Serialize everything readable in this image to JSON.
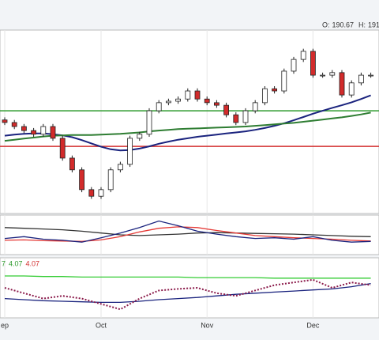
{
  "chart_data": {
    "type": "candlestick",
    "header_text": [
      "O:",
      "190.67",
      "H:",
      "191"
    ],
    "categories": [
      "ep",
      null,
      null,
      null,
      null,
      null,
      null,
      null,
      null,
      null,
      "Oct",
      null,
      null,
      null,
      null,
      null,
      null,
      null,
      null,
      null,
      null,
      "Nov",
      null,
      null,
      null,
      null,
      null,
      null,
      null,
      null,
      null,
      null,
      "Dec",
      null,
      null,
      null,
      null,
      null,
      null
    ],
    "open": [
      175.5,
      174.8,
      173.7,
      172.6,
      171.6,
      173.7,
      170.5,
      165.1,
      161.9,
      156.5,
      154.7,
      156.5,
      161.9,
      163.4,
      170.5,
      171.6,
      178.0,
      180.2,
      180.6,
      181.2,
      183.4,
      181.2,
      180.2,
      179.5,
      176.9,
      174.8,
      178.0,
      180.2,
      184.0,
      183.4,
      188.8,
      192.0,
      194.2,
      187.7,
      187.7,
      188.4,
      182.3,
      185.6,
      187.7
    ],
    "high": [
      176.2,
      175.5,
      174.4,
      173.3,
      174.4,
      174.4,
      171.2,
      165.8,
      162.6,
      157.2,
      157.2,
      162.6,
      164.1,
      171.2,
      172.3,
      178.7,
      180.9,
      181.3,
      181.9,
      184.1,
      184.1,
      181.9,
      180.9,
      180.2,
      177.6,
      178.7,
      180.9,
      184.7,
      184.7,
      189.5,
      192.7,
      194.9,
      194.9,
      188.4,
      189.1,
      189.1,
      186.3,
      188.4,
      188.4
    ],
    "low": [
      174.1,
      173.0,
      171.9,
      170.9,
      170.9,
      169.8,
      164.4,
      161.2,
      155.8,
      154.0,
      154.0,
      155.8,
      161.2,
      162.7,
      169.8,
      170.9,
      177.3,
      179.5,
      179.9,
      180.5,
      180.5,
      179.5,
      178.8,
      176.2,
      174.1,
      174.1,
      177.3,
      179.5,
      182.7,
      182.7,
      188.1,
      191.3,
      187.0,
      187.0,
      187.0,
      181.6,
      181.6,
      184.9,
      187.0
    ],
    "close": [
      174.8,
      173.7,
      172.6,
      171.6,
      173.7,
      170.5,
      165.1,
      161.9,
      156.5,
      154.7,
      156.5,
      161.9,
      163.4,
      170.5,
      171.6,
      178.0,
      180.2,
      180.6,
      181.2,
      183.4,
      181.2,
      180.2,
      179.5,
      176.9,
      174.8,
      178.0,
      180.2,
      184.0,
      183.4,
      188.8,
      192.0,
      194.2,
      187.7,
      187.7,
      188.4,
      182.3,
      185.6,
      187.7,
      187.7
    ],
    "up_color": "#ffffff",
    "down_color": "#d22b2b",
    "ylim": [
      150,
      200
    ],
    "grid": true,
    "series": [
      {
        "color": "#1a237e",
        "values": [
          171.2,
          171.5,
          171.7,
          171.8,
          171.8,
          171.6,
          171.3,
          170.8,
          170.0,
          169.1,
          168.2,
          167.5,
          167.2,
          167.3,
          167.7,
          168.3,
          169.0,
          169.6,
          170.1,
          170.5,
          170.9,
          171.2,
          171.5,
          171.8,
          172.1,
          172.4,
          172.8,
          173.3,
          173.9,
          174.6,
          175.4,
          176.3,
          177.2,
          178.0,
          178.8,
          179.5,
          180.3,
          181.2,
          182.2
        ]
      },
      {
        "color": "#2e7d32",
        "values": [
          169.8,
          170.1,
          170.4,
          170.7,
          171.0,
          171.2,
          171.3,
          171.4,
          171.4,
          171.4,
          171.5,
          171.6,
          171.7,
          171.9,
          172.1,
          172.4,
          172.6,
          172.8,
          173.0,
          173.1,
          173.2,
          173.3,
          173.4,
          173.5,
          173.6,
          173.7,
          173.9,
          174.1,
          174.3,
          174.5,
          174.7,
          175.0,
          175.3,
          175.6,
          175.9,
          176.2,
          176.6,
          177.0,
          177.5
        ]
      }
    ],
    "hlines": [
      {
        "value": 178.0,
        "color": "#2e9a2e"
      },
      {
        "value": 168.3,
        "color": "#d32f2f"
      }
    ],
    "panels": [
      {
        "x": [
          0,
          2,
          4,
          6,
          8,
          10,
          12,
          14,
          16,
          18,
          20,
          22,
          24,
          26,
          28,
          30,
          32,
          34,
          36,
          38
        ],
        "ylim": [
          0,
          100
        ],
        "series": [
          {
            "color": "#333333",
            "values": [
              70,
              68,
              66,
              64,
              60,
              55,
              50,
              48,
              50,
              52,
              55,
              56,
              55,
              54,
              53,
              52,
              50,
              48,
              46,
              45
            ]
          },
          {
            "color": "#e53935",
            "values": [
              35,
              36,
              34,
              33,
              32,
              36,
              45,
              58,
              68,
              72,
              70,
              62,
              55,
              48,
              45,
              42,
              40,
              38,
              35,
              33
            ]
          },
          {
            "color": "#1a237e",
            "values": [
              40,
              45,
              38,
              35,
              30,
              42,
              55,
              70,
              88,
              75,
              60,
              52,
              45,
              40,
              42,
              38,
              45,
              35,
              30,
              32
            ]
          }
        ]
      },
      {
        "x": [
          0,
          2,
          4,
          6,
          8,
          10,
          12,
          14,
          16,
          18,
          20,
          22,
          24,
          26,
          28,
          30,
          32,
          34,
          36,
          38
        ],
        "ylim": [
          0,
          100
        ],
        "labels": [
          {
            "text": "7",
            "color": "#2e9a2e"
          },
          {
            "text": "4.07",
            "color": "#2e9a2e"
          },
          {
            "text": "4.07",
            "color": "#d32f2f"
          }
        ],
        "series": [
          {
            "color": "#33cc33",
            "values": [
              72,
              72,
              71,
              71,
              70,
              70,
              70,
              70,
              70,
              70,
              69,
              69,
              69,
              69,
              68,
              68,
              68,
              68,
              68,
              68
            ]
          },
          {
            "color": "#1a237e",
            "values": [
              30,
              28,
              26,
              25,
              24,
              23,
              23,
              25,
              28,
              30,
              32,
              35,
              38,
              40,
              42,
              44,
              46,
              48,
              52,
              58
            ]
          },
          {
            "color": "#8b1a4a",
            "dotted": true,
            "values": [
              50,
              40,
              30,
              35,
              30,
              20,
              10,
              30,
              45,
              48,
              50,
              40,
              35,
              45,
              55,
              60,
              65,
              50,
              60,
              55
            ]
          }
        ]
      }
    ]
  }
}
